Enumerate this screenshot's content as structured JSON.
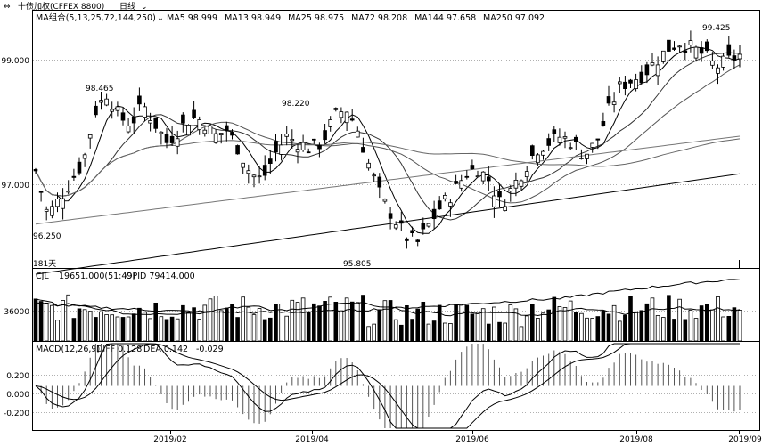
{
  "header": {
    "link_icon": "link-icon",
    "instrument": "十债加权(CFFEX 8800)",
    "period": "日线",
    "period_dropdown_icon": "chevron-down-icon"
  },
  "price_panel": {
    "ma_group_label": "MA组合(5,13,25,72,144,250)",
    "ma_dropdown_icon": "chevron-down-icon",
    "ma_values": [
      {
        "name": "MA5",
        "value": "98.999"
      },
      {
        "name": "MA13",
        "value": "98.949"
      },
      {
        "name": "MA25",
        "value": "98.975"
      },
      {
        "name": "MA72",
        "value": "98.208"
      },
      {
        "name": "MA144",
        "value": "97.658"
      },
      {
        "name": "MA250",
        "value": "97.092"
      }
    ],
    "y_ticks": [
      "99.000",
      "97.000"
    ],
    "annotations": [
      "98.465",
      "98.220",
      "99.425",
      "95.805",
      "96.250"
    ],
    "span_label": "181天"
  },
  "volume_panel": {
    "label": "CJL",
    "volume_value": "19651.000(51:49)",
    "opid_value": "OPID 79414.000",
    "y_ticks": [
      "36000"
    ]
  },
  "macd_panel": {
    "label": "MACD(12,26,9)",
    "diff_value": "DIFF 0.128",
    "dea_value": "DEA 0.142",
    "macd_value": "-0.029",
    "y_ticks": [
      "0.200",
      "0.000",
      "-0.200"
    ]
  },
  "x_axis": {
    "ticks": [
      "2019/02",
      "2019/04",
      "2019/06",
      "2019/08",
      "2019/09"
    ]
  },
  "chart_data": [
    {
      "type": "candlestick",
      "title": "十债加权(CFFEX 8800) 日线",
      "x_range": [
        "2019/01",
        "2019/09"
      ],
      "ylim": [
        95.6,
        99.7
      ],
      "ma_periods": [
        5,
        13,
        25,
        72,
        144,
        250
      ],
      "key_levels": {
        "high_feb": 98.465,
        "high_apr": 98.22,
        "low_apr": 95.805,
        "high_aug": 99.425,
        "low_jan": 96.25
      },
      "close_path": [
        97.15,
        96.45,
        96.7,
        97.0,
        97.3,
        98.1,
        98.4,
        98.0,
        97.9,
        98.2,
        97.9,
        97.6,
        97.8,
        98.0,
        97.95,
        97.7,
        97.8,
        97.5,
        97.1,
        97.0,
        97.4,
        97.7,
        97.6,
        97.5,
        97.6,
        98.0,
        98.15,
        97.8,
        97.2,
        96.7,
        96.4,
        96.1,
        96.0,
        96.3,
        96.6,
        96.8,
        97.1,
        97.2,
        97.0,
        96.6,
        96.9,
        97.2,
        97.5,
        97.6,
        97.7,
        97.6,
        97.4,
        97.6,
        98.1,
        98.5,
        98.6,
        98.7,
        98.9,
        99.1,
        99.2,
        99.1,
        99.0,
        98.8,
        98.9,
        98.99
      ]
    },
    {
      "type": "bar",
      "title": "CJL",
      "ylim": [
        0,
        80000
      ],
      "y_tick": 36000
    },
    {
      "type": "line",
      "title": "MACD(12,26,9)",
      "ylim": [
        -0.25,
        0.25
      ],
      "y_ticks": [
        0.2,
        0.0,
        -0.2
      ],
      "series": [
        {
          "name": "DIFF",
          "last": 0.128
        },
        {
          "name": "DEA",
          "last": 0.142
        },
        {
          "name": "MACD",
          "last": -0.029
        }
      ]
    }
  ],
  "colors": {
    "up_candle": "#ffffff",
    "down_candle": "#000000",
    "outline": "#000000",
    "grid": "#b0b0b0"
  }
}
